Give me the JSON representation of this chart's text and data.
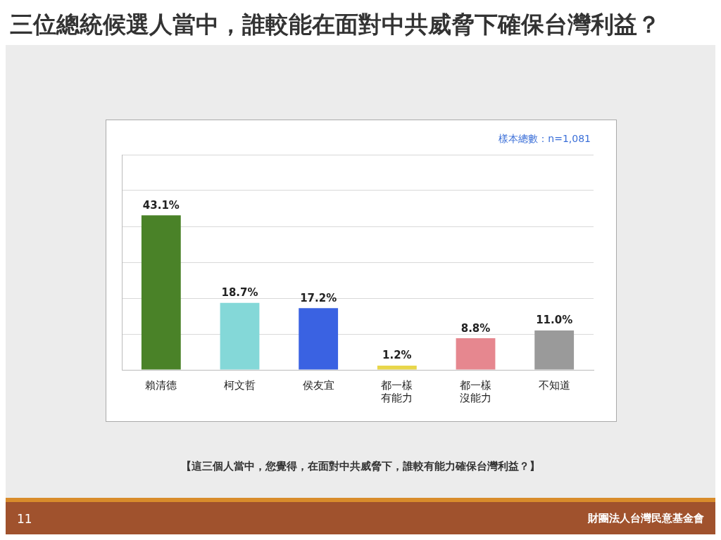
{
  "chart_data": {
    "type": "bar",
    "title": "三位總統候選人當中，誰較能在面對中共威脅下確保台灣利益？",
    "categories": [
      "賴清德",
      "柯文哲",
      "侯友宜",
      "都一樣有能力",
      "都一樣沒能力",
      "不知道"
    ],
    "values": [
      43.1,
      18.7,
      17.2,
      1.2,
      8.8,
      11.0
    ],
    "colors": [
      "#4a8228",
      "#84d8d8",
      "#3a62e2",
      "#e8d64a",
      "#e6878f",
      "#9a9a9a"
    ],
    "value_labels": [
      "43.1%",
      "18.7%",
      "17.2%",
      "1.2%",
      "8.8%",
      "11.0%"
    ],
    "ylim": [
      0,
      60
    ],
    "yticks": [
      {
        "value": 0,
        "label": null
      },
      {
        "value": 10,
        "label": null
      },
      {
        "value": 20,
        "label": null
      },
      {
        "value": 30,
        "label": null
      },
      {
        "value": 40,
        "label": null
      },
      {
        "value": 50,
        "label": null
      },
      {
        "value": 60,
        "label": null
      }
    ],
    "grid": "y",
    "tick_labels": "x",
    "legend": false,
    "annotations": [
      "樣本總數：n=1,081",
      "【這三個人當中，您覺得，在面對中共威脅下，誰較有能力確保台灣利益？】",
      "11",
      "財團法人台灣民意基金會"
    ]
  }
}
